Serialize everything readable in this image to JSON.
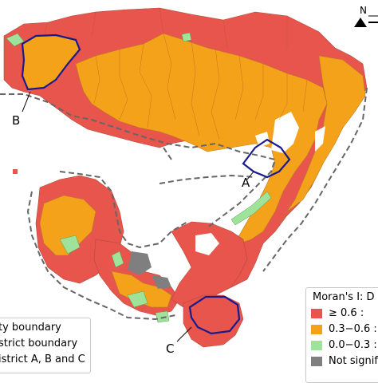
{
  "map": {
    "north_label": "N",
    "markers": {
      "a": "A",
      "b": "B",
      "c": "C"
    }
  },
  "legend_right": {
    "title": "Moran's I: D",
    "items": [
      {
        "label": "≥ 0.6     :",
        "color": "#e8554d"
      },
      {
        "label": "0.3−0.6 :",
        "color": "#f5a21b"
      },
      {
        "label": "0.0−0.3 :",
        "color": "#9fe39a"
      },
      {
        "label": "Not signif",
        "color": "#7f7f7f"
      }
    ]
  },
  "legend_left": {
    "items": [
      {
        "label": "ty boundary"
      },
      {
        "label": "strict boundary"
      },
      {
        "label": "istrict A, B and C"
      }
    ]
  },
  "colors": {
    "high": "#e8554d",
    "mid": "#f5a21b",
    "low": "#9fe39a",
    "not_significant": "#7f7f7f",
    "district_outline": "#1a1a8c",
    "city_boundary": "#666666"
  }
}
